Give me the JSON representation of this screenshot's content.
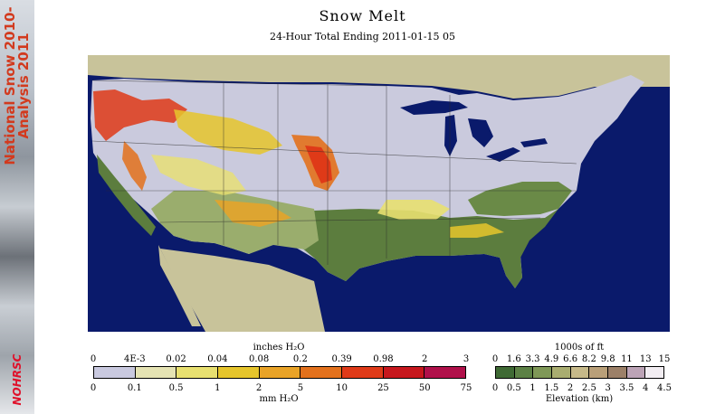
{
  "banner": {
    "line1": "National Snow 2010-",
    "line2": "Analysis 2011",
    "logo": "NOHRSC"
  },
  "title": "Snow Melt",
  "subtitle": "24-Hour Total Ending 2011-01-15 05",
  "legend_precip": {
    "top_caption": "inches H₂O",
    "bottom_caption": "mm H₂O",
    "top_ticks": [
      "0",
      "4E-3",
      "0.02",
      "0.04",
      "0.08",
      "0.2",
      "0.39",
      "0.98",
      "2",
      "3"
    ],
    "bottom_ticks": [
      "0",
      "0.1",
      "0.5",
      "1",
      "2",
      "5",
      "10",
      "25",
      "50",
      "75"
    ],
    "colors": [
      "#c9c9df",
      "#e5e3b3",
      "#e8e070",
      "#e6c52c",
      "#e9a327",
      "#e3711c",
      "#df3a18",
      "#c7171d",
      "#b0104a"
    ]
  },
  "legend_elev": {
    "top_caption": "1000s of ft",
    "bottom_caption": "Elevation (km)",
    "top_ticks": [
      "0",
      "1.6",
      "3.3",
      "4.9",
      "6.6",
      "8.2",
      "9.8",
      "11",
      "13",
      "15"
    ],
    "bottom_ticks": [
      "0",
      "0.5",
      "1",
      "1.5",
      "2",
      "2.5",
      "3",
      "3.5",
      "4",
      "4.5"
    ],
    "colors": [
      "#3f6a34",
      "#5c8145",
      "#7f9857",
      "#a9ad70",
      "#c6b989",
      "#b99f78",
      "#9c8068",
      "#bca3b6",
      "#f2edf2"
    ]
  },
  "map_colors": {
    "ocean": "#0a1a6b",
    "outside_land": "#c8c39a",
    "snow_covered": "#cacadd",
    "lowland": "#5c7d3e",
    "highland": "#9aad6d"
  }
}
